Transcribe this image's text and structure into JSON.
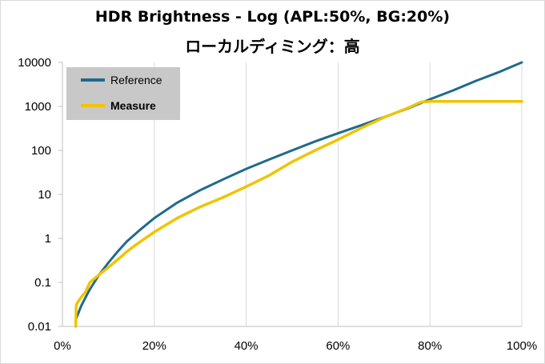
{
  "chart_data": {
    "type": "line",
    "title": "HDR Brightness - Log (APL:50%, BG:20%)",
    "subtitle": "ローカルディミング：高",
    "xlabel": "",
    "ylabel": "",
    "x_scale": "linear",
    "y_scale": "log",
    "xlim": [
      0,
      100
    ],
    "ylim": [
      0.01,
      10000
    ],
    "x_tick_labels": [
      "0%",
      "20%",
      "40%",
      "60%",
      "80%",
      "100%"
    ],
    "y_tick_labels": [
      "0.01",
      "0.1",
      "1",
      "10",
      "100",
      "1000",
      "10000"
    ],
    "grid": "vertical",
    "legend": "top-left",
    "series": [
      {
        "name": "Reference",
        "color": "#1f6b8c",
        "x": [
          3,
          4,
          5,
          6,
          8,
          10,
          12,
          14,
          17,
          20,
          25,
          30,
          35,
          40,
          45,
          50,
          55,
          60,
          65,
          70,
          75,
          80,
          85,
          90,
          95,
          100
        ],
        "y": [
          0.015,
          0.028,
          0.045,
          0.07,
          0.15,
          0.28,
          0.5,
          0.85,
          1.6,
          2.9,
          6.5,
          12.5,
          22,
          38,
          62,
          100,
          160,
          245,
          370,
          570,
          880,
          1450,
          2300,
          3800,
          6000,
          10000
        ]
      },
      {
        "name": "Measure",
        "color": "#f0c400",
        "bold": true,
        "x": [
          2.9,
          3,
          3.3,
          4,
          5,
          6,
          8,
          10,
          12,
          13,
          14,
          15,
          17,
          20,
          25,
          30,
          35,
          40,
          45,
          50,
          55,
          60,
          65,
          70,
          75,
          78,
          80,
          85,
          90,
          95,
          100
        ],
        "y": [
          0.01,
          0.03,
          0.035,
          0.045,
          0.06,
          0.1,
          0.15,
          0.22,
          0.33,
          0.4,
          0.5,
          0.6,
          0.85,
          1.4,
          2.9,
          5.2,
          8.6,
          15,
          27,
          55,
          100,
          175,
          320,
          560,
          900,
          1250,
          1300,
          1300,
          1300,
          1300,
          1300
        ]
      }
    ]
  }
}
